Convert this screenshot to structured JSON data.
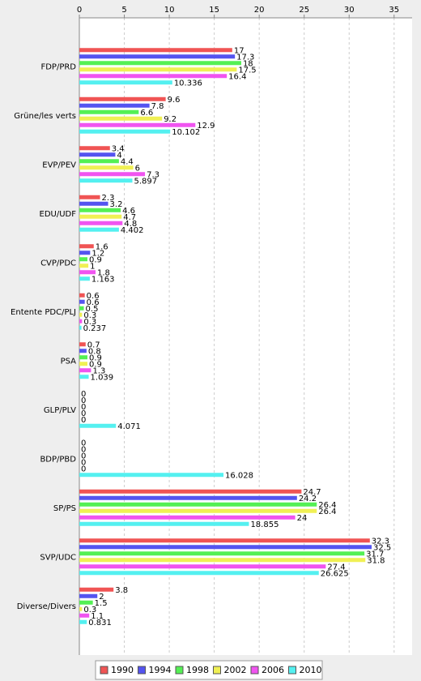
{
  "chart_data": {
    "type": "hbar",
    "categories": [
      "FDP/PRD",
      "Grüne/les verts",
      "EVP/PEV",
      "EDU/UDF",
      "CVP/PDC",
      "Entente PDC/PLJ",
      "PSA",
      "GLP/PLV",
      "BDP/PBD",
      "SP/PS",
      "SVP/UDC",
      "Diverse/Divers"
    ],
    "series": [
      {
        "name": "1990",
        "color": "#f05454",
        "values": [
          17,
          9.6,
          3.4,
          2.3,
          1.6,
          0.6,
          0.7,
          0,
          0,
          24.7,
          32.3,
          3.8
        ]
      },
      {
        "name": "1994",
        "color": "#5454f0",
        "values": [
          17.3,
          7.8,
          4,
          3.2,
          1.2,
          0.6,
          0.8,
          0,
          0,
          24.2,
          32.5,
          2
        ]
      },
      {
        "name": "1998",
        "color": "#54f054",
        "values": [
          18,
          6.6,
          4.4,
          4.6,
          0.9,
          0.5,
          0.9,
          0,
          0,
          26.4,
          31.7,
          1.5
        ]
      },
      {
        "name": "2002",
        "color": "#f0f054",
        "values": [
          17.5,
          9.2,
          6,
          4.7,
          1,
          0.3,
          0.9,
          0,
          0,
          26.4,
          31.8,
          0.3
        ]
      },
      {
        "name": "2006",
        "color": "#f054f0",
        "values": [
          16.4,
          12.9,
          7.3,
          4.8,
          1.8,
          0.3,
          1.3,
          0,
          0,
          24,
          27.4,
          1.1
        ]
      },
      {
        "name": "2010",
        "color": "#54f0f0",
        "values": [
          10.336,
          10.102,
          5.897,
          4.402,
          1.163,
          0.237,
          1.039,
          4.071,
          16.028,
          18.855,
          26.625,
          0.831
        ]
      }
    ],
    "xlim": [
      0,
      37
    ],
    "xticks": [
      0,
      5,
      10,
      15,
      20,
      25,
      30,
      35
    ],
    "grid": true,
    "legend": "bottom"
  }
}
